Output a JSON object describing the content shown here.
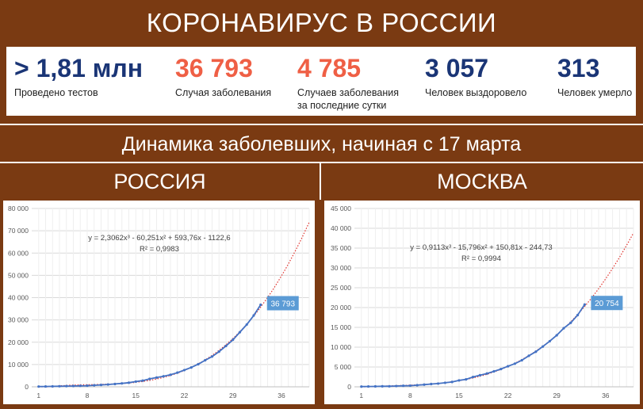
{
  "header": {
    "title": "КОРОНАВИРУС В РОССИИ"
  },
  "stats": [
    {
      "value": "> 1,81 млн",
      "label_lines": [
        "Проведено тестов"
      ],
      "color": "#1a3576"
    },
    {
      "value": "36 793",
      "label_lines": [
        "Случая заболевания"
      ],
      "color": "#ef5f45"
    },
    {
      "value": "4 785",
      "label_lines": [
        "Случаев заболевания",
        "за последние сутки"
      ],
      "color": "#ef5f45"
    },
    {
      "value": "3 057",
      "label_lines": [
        "Человек выздоровело"
      ],
      "color": "#1a3576"
    },
    {
      "value": "313",
      "label_lines": [
        "Человек умерло"
      ],
      "color": "#1a3576"
    }
  ],
  "subtitle": "Динамика заболевших, начиная с 17 марта",
  "regions": {
    "left": "РОССИЯ",
    "right": "МОСКВА"
  },
  "colors": {
    "background": "#7a3a12",
    "series": "#4472c4",
    "trend": "#e0302a",
    "callout": "#5b9bd5"
  },
  "chart_data": [
    {
      "type": "line",
      "region": "РОССИЯ",
      "x_ticks": [
        1,
        8,
        15,
        22,
        29,
        36
      ],
      "y_ticks": [
        "0",
        "10 000",
        "20 000",
        "30 000",
        "40 000",
        "50 000",
        "60 000",
        "70 000",
        "80 000"
      ],
      "ylim": [
        0,
        80000
      ],
      "xlim": [
        0,
        40
      ],
      "grid": true,
      "series": [
        {
          "x": [
            1,
            2,
            3,
            4,
            5,
            6,
            7,
            8,
            9,
            10,
            11,
            12,
            13,
            14,
            15,
            16,
            17,
            18,
            19,
            20,
            21,
            22,
            23,
            24,
            25,
            26,
            27,
            28,
            29,
            30,
            31,
            32,
            33
          ],
          "values": [
            114,
            147,
            199,
            253,
            306,
            367,
            438,
            495,
            658,
            840,
            1036,
            1264,
            1534,
            1836,
            2337,
            2777,
            3548,
            4149,
            4731,
            5389,
            6343,
            7497,
            8672,
            10131,
            11917,
            13584,
            15770,
            18328,
            21102,
            24490,
            27938,
            32008,
            36793
          ]
        }
      ],
      "trendline": {
        "type": "polynomial-3",
        "coefficients": [
          2.3062,
          -60.251,
          593.76,
          -1122.6
        ],
        "extends_to_x": 40,
        "equation": "y = 2,3062x³ - 60,251x² + 593,76x - 1122,6",
        "r2": "R² = 0,9983"
      },
      "callout": {
        "text": "36 793",
        "x": 33,
        "y": 36793
      }
    },
    {
      "type": "line",
      "region": "МОСКВА",
      "x_ticks": [
        1,
        8,
        15,
        22,
        29,
        36
      ],
      "y_ticks": [
        "0",
        "5 000",
        "10 000",
        "15 000",
        "20 000",
        "25 000",
        "30 000",
        "35 000",
        "40 000",
        "45 000"
      ],
      "ylim": [
        0,
        45000
      ],
      "xlim": [
        0,
        40
      ],
      "grid": true,
      "series": [
        {
          "x": [
            1,
            2,
            3,
            4,
            5,
            6,
            7,
            8,
            9,
            10,
            11,
            12,
            13,
            14,
            15,
            16,
            17,
            18,
            19,
            20,
            21,
            22,
            23,
            24,
            25,
            26,
            27,
            28,
            29,
            30,
            31,
            32,
            33
          ],
          "values": [
            53,
            86,
            98,
            131,
            137,
            191,
            262,
            290,
            410,
            546,
            703,
            817,
            1014,
            1226,
            1613,
            1880,
            2475,
            2923,
            3357,
            3893,
            4484,
            5181,
            5841,
            6698,
            7822,
            8852,
            10158,
            11513,
            13002,
            14776,
            16146,
            18105,
            20754
          ]
        }
      ],
      "trendline": {
        "type": "polynomial-3",
        "coefficients": [
          0.9113,
          -15.796,
          150.81,
          -244.73
        ],
        "extends_to_x": 40,
        "equation": "y = 0,9113x³ - 15,796x² + 150,81x - 244,73",
        "r2": "R² = 0,9994"
      },
      "callout": {
        "text": "20 754",
        "x": 33,
        "y": 20754
      }
    }
  ]
}
